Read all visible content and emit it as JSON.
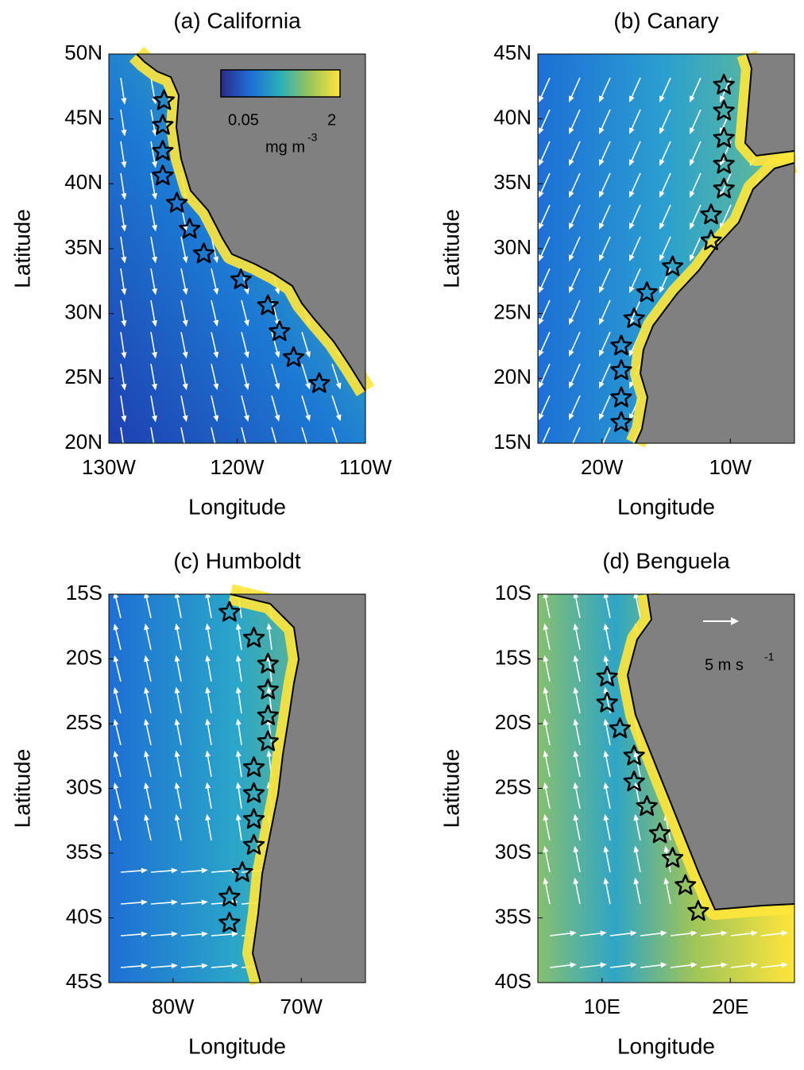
{
  "panels": [
    {
      "title": "(a) California",
      "xlabel": "Longitude",
      "ylabel": "Latitude",
      "xlim": [
        -130,
        -110
      ],
      "ylim": [
        20,
        50
      ],
      "xticks": [
        {
          "value": -130,
          "label": "130W"
        },
        {
          "value": -120,
          "label": "120W"
        },
        {
          "value": -110,
          "label": "110W"
        }
      ],
      "yticks": [
        {
          "value": 20,
          "label": "20N"
        },
        {
          "value": 25,
          "label": "25N"
        },
        {
          "value": 30,
          "label": "30N"
        },
        {
          "value": 35,
          "label": "35N"
        },
        {
          "value": 40,
          "label": "40N"
        },
        {
          "value": 45,
          "label": "45N"
        },
        {
          "value": 50,
          "label": "50N"
        }
      ],
      "stations": {
        "lon": [
          -125.7,
          -125.8,
          -125.8,
          -125.8,
          -124.7,
          -123.7,
          -122.6,
          -119.7,
          -117.6,
          -116.7,
          -115.6,
          -113.6
        ],
        "lat": [
          46.4,
          44.5,
          42.5,
          40.6,
          38.5,
          36.5,
          34.6,
          32.6,
          30.6,
          28.6,
          26.6,
          24.6
        ]
      }
    },
    {
      "title": "(b) Canary",
      "xlabel": "Longitude",
      "ylabel": "Latitude",
      "xlim": [
        -25,
        -5
      ],
      "ylim": [
        15,
        45
      ],
      "xticks": [
        {
          "value": -20,
          "label": "20W"
        },
        {
          "value": -10,
          "label": "10W"
        }
      ],
      "yticks": [
        {
          "value": 15,
          "label": "15N"
        },
        {
          "value": 20,
          "label": "20N"
        },
        {
          "value": 25,
          "label": "25N"
        },
        {
          "value": 30,
          "label": "30N"
        },
        {
          "value": 35,
          "label": "35N"
        },
        {
          "value": 40,
          "label": "40N"
        },
        {
          "value": 45,
          "label": "45N"
        }
      ],
      "stations": {
        "lon": [
          -10.5,
          -10.5,
          -10.5,
          -10.5,
          -10.5,
          -11.5,
          -11.5,
          -14.5,
          -16.5,
          -17.5,
          -18.5,
          -18.5,
          -18.5,
          -18.5
        ],
        "lat": [
          42.6,
          40.6,
          38.5,
          36.5,
          34.6,
          32.6,
          30.6,
          28.6,
          26.6,
          24.6,
          22.5,
          20.6,
          18.5,
          16.6
        ]
      }
    },
    {
      "title": "(c) Humboldt",
      "xlabel": "Longitude",
      "ylabel": "Latitude",
      "xlim": [
        -85,
        -65
      ],
      "ylim": [
        -45,
        -15
      ],
      "xticks": [
        {
          "value": -80,
          "label": "80W"
        },
        {
          "value": -70,
          "label": "70W"
        }
      ],
      "yticks": [
        {
          "value": -45,
          "label": "45S"
        },
        {
          "value": -40,
          "label": "40S"
        },
        {
          "value": -35,
          "label": "35S"
        },
        {
          "value": -30,
          "label": "30S"
        },
        {
          "value": -25,
          "label": "25S"
        },
        {
          "value": -20,
          "label": "20S"
        },
        {
          "value": -15,
          "label": "15S"
        }
      ],
      "stations": {
        "lon": [
          -75.6,
          -73.7,
          -72.6,
          -72.6,
          -72.6,
          -72.6,
          -73.7,
          -73.7,
          -73.7,
          -73.7,
          -74.6,
          -75.6,
          -75.6
        ],
        "lat": [
          -16.4,
          -18.4,
          -20.4,
          -22.4,
          -24.4,
          -26.4,
          -28.4,
          -30.4,
          -32.4,
          -34.4,
          -36.5,
          -38.4,
          -40.4
        ]
      }
    },
    {
      "title": "(d) Benguela",
      "xlabel": "Longitude",
      "ylabel": "Latitude",
      "xlim": [
        5,
        25
      ],
      "ylim": [
        -40,
        -10
      ],
      "xticks": [
        {
          "value": 10,
          "label": "10E"
        },
        {
          "value": 20,
          "label": "20E"
        }
      ],
      "yticks": [
        {
          "value": -40,
          "label": "40S"
        },
        {
          "value": -35,
          "label": "35S"
        },
        {
          "value": -30,
          "label": "30S"
        },
        {
          "value": -25,
          "label": "25S"
        },
        {
          "value": -20,
          "label": "20S"
        },
        {
          "value": -15,
          "label": "15S"
        },
        {
          "value": -10,
          "label": "10S"
        }
      ],
      "stations": {
        "lon": [
          10.4,
          10.4,
          11.4,
          12.5,
          12.5,
          13.5,
          14.5,
          15.5,
          16.5,
          17.5
        ],
        "lat": [
          -16.4,
          -18.4,
          -20.4,
          -22.5,
          -24.5,
          -26.4,
          -28.5,
          -30.4,
          -32.5,
          -34.5
        ]
      }
    }
  ],
  "colorbar": {
    "ticks": [
      0.05,
      2
    ],
    "label": "mg m",
    "label_sup": "-3"
  },
  "vector_legend": {
    "label": "5 m s",
    "label_sup": "-1"
  }
}
